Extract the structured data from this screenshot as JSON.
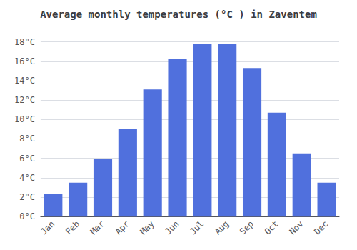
{
  "chart_data": {
    "type": "bar",
    "title": "Average monthly temperatures (°C ) in Zaventem",
    "categories": [
      "Jan",
      "Feb",
      "Mar",
      "Apr",
      "May",
      "Jun",
      "Jul",
      "Aug",
      "Sep",
      "Oct",
      "Nov",
      "Dec"
    ],
    "values": [
      2.3,
      3.5,
      5.9,
      9.0,
      13.1,
      16.2,
      17.8,
      17.8,
      15.3,
      10.7,
      6.5,
      3.5
    ],
    "ylim": [
      0,
      19
    ],
    "yticks": [
      {
        "value": 0,
        "label": "0°C"
      },
      {
        "value": 2,
        "label": "2°C"
      },
      {
        "value": 4,
        "label": "4°C"
      },
      {
        "value": 6,
        "label": "6°C"
      },
      {
        "value": 8,
        "label": "8°C"
      },
      {
        "value": 10,
        "label": "10°C"
      },
      {
        "value": 12,
        "label": "12°C"
      },
      {
        "value": 14,
        "label": "14°C"
      },
      {
        "value": 16,
        "label": "16°C"
      },
      {
        "value": 18,
        "label": "18°C"
      }
    ],
    "grid": true
  }
}
